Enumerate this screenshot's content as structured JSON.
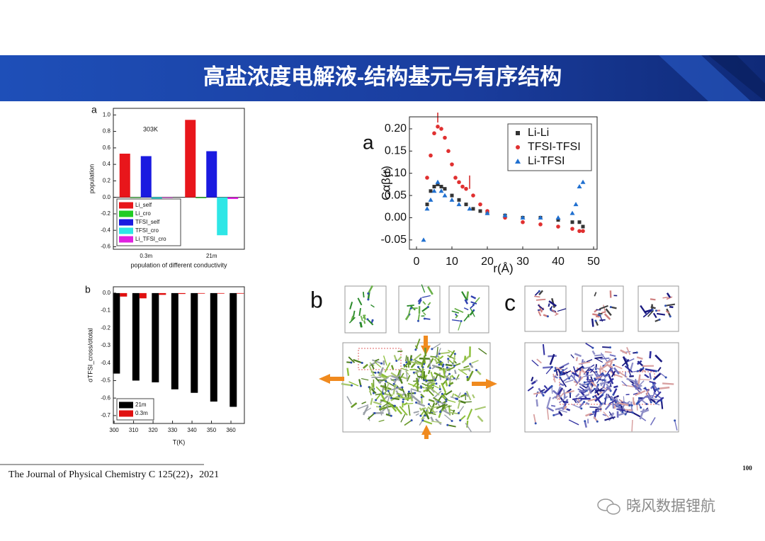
{
  "header": {
    "title": "高盐浓度电解液-结构基元与有序结构"
  },
  "chart_data": [
    {
      "type": "bar",
      "panel": "a",
      "annotation": "303K",
      "xlabel": "population of different conductivity",
      "ylabel": "population",
      "categories": [
        "0.3m",
        "21m"
      ],
      "series": [
        {
          "name": "Li_self",
          "color": "#e8161b",
          "values": [
            0.53,
            0.94
          ]
        },
        {
          "name": "Li_cro",
          "color": "#22cc22",
          "values": [
            0.0,
            -0.01
          ]
        },
        {
          "name": "TFSI_self",
          "color": "#1a1ae0",
          "values": [
            0.5,
            0.56
          ]
        },
        {
          "name": "TFSI_cro",
          "color": "#2ee6e6",
          "values": [
            -0.02,
            -0.46
          ]
        },
        {
          "name": "Li_TFSI_cro",
          "color": "#e020e0",
          "values": [
            0.0,
            -0.02
          ]
        }
      ],
      "ylim": [
        -0.63,
        1.08
      ],
      "yticks": [
        -0.6,
        -0.4,
        -0.2,
        {
          "value": 0.0,
          "label": "0.0"
        },
        0.2,
        0.4,
        0.6,
        0.8,
        {
          "value": 1.0,
          "label": "1.0"
        }
      ],
      "legend": "lower left"
    },
    {
      "type": "groupbar",
      "panel": "b",
      "xlabel": "T(K)",
      "ylabel": "σTFSI_cross/σtotal",
      "x": [
        303,
        313,
        323,
        333,
        343,
        353,
        363
      ],
      "series": [
        {
          "name": "21m",
          "color": "#000000",
          "values": [
            -0.46,
            -0.5,
            -0.51,
            -0.55,
            -0.57,
            -0.62,
            -0.65
          ]
        },
        {
          "name": "0.3m",
          "color": "#e01010",
          "values": [
            -0.02,
            -0.03,
            -0.01,
            -0.005,
            -0.003,
            -0.002,
            -0.001
          ]
        }
      ],
      "xlim": [
        299.6,
        366.9
      ],
      "xticks": [
        300,
        310,
        320,
        330,
        340,
        350,
        360
      ],
      "ylim": [
        -0.745,
        0.036
      ],
      "yticks": [
        -0.7,
        -0.6,
        -0.5,
        -0.4,
        -0.3,
        -0.2,
        -0.1,
        {
          "value": 0.0,
          "label": "0.0"
        }
      ],
      "legend": "lower left"
    },
    {
      "type": "scatter",
      "panel": "a",
      "xlabel": "r(Å)",
      "ylabel": "Cαβ(r)",
      "series": [
        {
          "name": "Li-Li",
          "color": "#333333",
          "marker": "square",
          "x": [
            3,
            4,
            5,
            6,
            7,
            8,
            10,
            12,
            14,
            16,
            18,
            20,
            25,
            30,
            35,
            40,
            44,
            46,
            47
          ],
          "values": [
            0.03,
            0.06,
            0.07,
            0.075,
            0.07,
            0.065,
            0.05,
            0.04,
            0.03,
            0.02,
            0.015,
            0.01,
            0.005,
            0.0,
            0.0,
            -0.005,
            -0.01,
            -0.01,
            -0.02
          ]
        },
        {
          "name": "TFSI-TFSI",
          "color": "#e03030",
          "marker": "circle",
          "x": [
            3,
            4,
            5,
            6,
            7,
            8,
            9,
            10,
            11,
            12,
            13,
            14,
            16,
            18,
            20,
            25,
            30,
            35,
            40,
            44,
            46,
            47
          ],
          "values": [
            0.09,
            0.14,
            0.19,
            0.205,
            0.2,
            0.18,
            0.15,
            0.12,
            0.09,
            0.08,
            0.07,
            0.065,
            0.05,
            0.03,
            0.015,
            0.0,
            -0.01,
            -0.015,
            -0.02,
            -0.025,
            -0.03,
            -0.03
          ]
        },
        {
          "name": "Li-TFSI",
          "color": "#2070d0",
          "marker": "triangle",
          "x": [
            2,
            3,
            4,
            5,
            6,
            7,
            8,
            10,
            12,
            15,
            20,
            25,
            30,
            35,
            40,
            44,
            45,
            46,
            47
          ],
          "values": [
            -0.05,
            0.02,
            0.04,
            0.06,
            0.08,
            0.06,
            0.05,
            0.04,
            0.03,
            0.02,
            0.01,
            0.005,
            0.0,
            0.0,
            0.0,
            0.01,
            0.03,
            0.07,
            0.08
          ]
        }
      ],
      "xlim": [
        -2,
        51
      ],
      "xticks": [
        0,
        10,
        20,
        30,
        40,
        50
      ],
      "ylim": [
        -0.071,
        0.227
      ],
      "yticks": [
        -0.05,
        {
          "value": 0.0,
          "label": "0.00"
        },
        0.05,
        {
          "value": 0.1,
          "label": "0.10"
        },
        0.15,
        {
          "value": 0.2,
          "label": "0.20"
        }
      ],
      "legend": "upper right"
    }
  ],
  "images": [
    {
      "label": "b"
    },
    {
      "label": "c"
    }
  ],
  "footer": {
    "reference": "The Journal of Physical Chemistry C 125(22)，2021",
    "page_number": "100",
    "watermark": "晓风数据锂航"
  }
}
